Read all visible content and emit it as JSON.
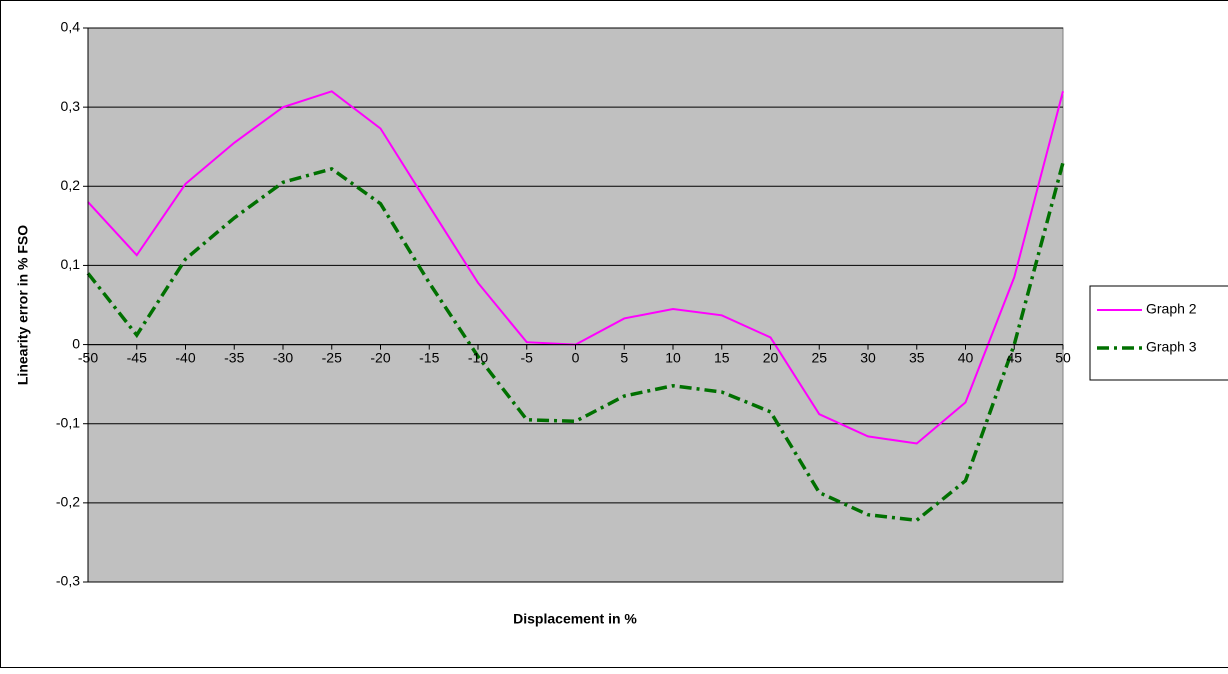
{
  "chart_data": {
    "type": "line",
    "x_label": "Displacement in %",
    "y_label": "Linearity error in % FSO",
    "x": [
      -50,
      -45,
      -40,
      -35,
      -30,
      -25,
      -20,
      -15,
      -10,
      -5,
      0,
      5,
      10,
      15,
      20,
      25,
      30,
      35,
      40,
      45,
      50
    ],
    "series": [
      {
        "name": "Graph 2",
        "color": "#ff00ff",
        "line_style": "solid",
        "values": [
          0.18,
          0.113,
          0.203,
          0.255,
          0.3,
          0.32,
          0.273,
          0.175,
          0.078,
          0.003,
          0.0,
          0.033,
          0.045,
          0.037,
          0.009,
          -0.088,
          -0.116,
          -0.125,
          -0.073,
          0.085,
          0.32
        ]
      },
      {
        "name": "Graph 3",
        "color": "#007000",
        "line_style": "dashdot",
        "values": [
          0.09,
          0.012,
          0.108,
          0.16,
          0.205,
          0.222,
          0.178,
          0.078,
          -0.015,
          -0.095,
          -0.097,
          -0.065,
          -0.052,
          -0.06,
          -0.085,
          -0.187,
          -0.215,
          -0.222,
          -0.172,
          0.0,
          0.23
        ]
      }
    ],
    "xlim": [
      -50,
      50
    ],
    "xticks": [
      -50,
      -45,
      -40,
      -35,
      -30,
      -25,
      -20,
      -15,
      -10,
      -5,
      0,
      5,
      10,
      15,
      20,
      25,
      30,
      35,
      40,
      45,
      50
    ],
    "ylim": [
      -0.3,
      0.4
    ],
    "yticks": [
      {
        "value": -0.3,
        "label": "-0,3"
      },
      {
        "value": -0.2,
        "label": "-0,2"
      },
      {
        "value": -0.1,
        "label": "-0,1"
      },
      0,
      {
        "value": 0.1,
        "label": "0,1"
      },
      {
        "value": 0.2,
        "label": "0,2"
      },
      {
        "value": 0.3,
        "label": "0,3"
      },
      {
        "value": 0.4,
        "label": "0,4"
      }
    ],
    "grid": true,
    "legend": "right"
  }
}
